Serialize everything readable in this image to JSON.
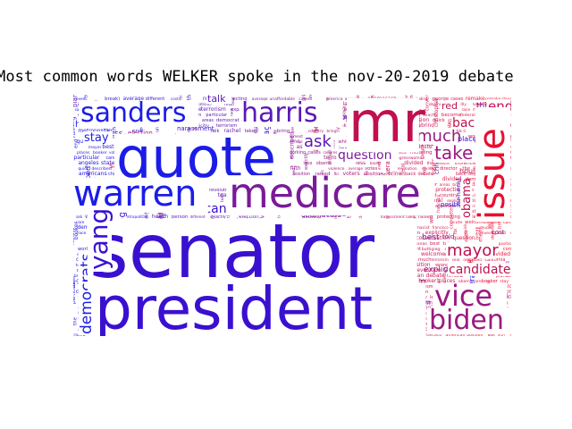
{
  "title": "Most common words WELKER spoke in the nov-20-2019 debate",
  "word_cloud": {
    "colors": {
      "blue": "#1c1ce8",
      "indigo": "#3a10d0",
      "violet": "#5a18b8",
      "purple": "#7a1a9a",
      "magenta": "#9a1a80",
      "crimson": "#c01050",
      "red": "#e81030"
    },
    "large_words": [
      {
        "text": "senator",
        "color": "indigo"
      },
      {
        "text": "president",
        "color": "indigo"
      },
      {
        "text": "quote",
        "color": "blue"
      },
      {
        "text": "mr",
        "color": "crimson"
      },
      {
        "text": "medicare",
        "color": "purple"
      },
      {
        "text": "warren",
        "color": "blue"
      },
      {
        "text": "sanders",
        "color": "blue"
      },
      {
        "text": "harris",
        "color": "violet"
      },
      {
        "text": "issue",
        "color": "red"
      },
      {
        "text": "vice",
        "color": "magenta"
      },
      {
        "text": "biden",
        "color": "magenta"
      },
      {
        "text": "yang",
        "color": "indigo"
      }
    ],
    "medium_words": [
      {
        "text": "much",
        "color": "magenta"
      },
      {
        "text": "take",
        "color": "magenta"
      },
      {
        "text": "mayor",
        "color": "crimson"
      },
      {
        "text": "steyer",
        "color": "indigo"
      },
      {
        "text": "quick",
        "color": "violet"
      },
      {
        "text": "problem",
        "color": "magenta"
      },
      {
        "text": "voters",
        "color": "violet"
      },
      {
        "text": "ask",
        "color": "violet"
      },
      {
        "text": "end",
        "color": "crimson"
      },
      {
        "text": "back",
        "color": "crimson"
      },
      {
        "text": "democrats",
        "color": "blue"
      },
      {
        "text": "candidates",
        "color": "crimson"
      },
      {
        "text": "american",
        "color": "indigo"
      },
      {
        "text": "question",
        "color": "purple"
      },
      {
        "text": "democratic",
        "color": "indigo"
      },
      {
        "text": "ashley",
        "color": "purple"
      },
      {
        "text": "stay",
        "color": "blue"
      },
      {
        "text": "break)",
        "color": "blue"
      },
      {
        "text": "break",
        "color": "indigo"
      },
      {
        "text": "obama",
        "color": "crimson"
      },
      {
        "text": "white",
        "color": "indigo"
      },
      {
        "text": "buttigieg",
        "color": "indigo"
      },
      {
        "text": "running",
        "color": "violet"
      },
      {
        "text": "america",
        "color": "purple"
      },
      {
        "text": "the",
        "color": "purple"
      },
      {
        "text": "supremacist",
        "color": "indigo"
      },
      {
        "text": "conversation",
        "color": "indigo"
      },
      {
        "text": "congresswoman",
        "color": "magenta"
      },
      {
        "text": "talk",
        "color": "violet"
      },
      {
        "text": "red",
        "color": "crimson"
      },
      {
        "text": "health",
        "color": "blue"
      }
    ],
    "small_words": [
      {
        "text": "plans",
        "color": "violet"
      },
      {
        "text": "bring",
        "color": "violet"
      },
      {
        "text": "states",
        "color": "violet"
      },
      {
        "text": "gabbard",
        "color": "purple"
      },
      {
        "text": "care",
        "color": "violet"
      },
      {
        "text": "message",
        "color": "indigo"
      },
      {
        "text": "divided",
        "color": "indigo"
      },
      {
        "text": "campaign",
        "color": "violet"
      },
      {
        "text": "different",
        "color": "violet"
      },
      {
        "text": "including",
        "color": "violet"
      },
      {
        "text": "general",
        "color": "violet"
      },
      {
        "text": "particular",
        "color": "violet"
      },
      {
        "text": "revolution",
        "color": "violet"
      },
      {
        "text": "worried",
        "color": "magenta"
      },
      {
        "text": "become",
        "color": "magenta"
      },
      {
        "text": "votes",
        "color": "magenta"
      },
      {
        "text": "domestic",
        "color": "crimson"
      },
      {
        "text": "interested",
        "color": "crimson"
      },
      {
        "text": "fifth",
        "color": "purple"
      },
      {
        "text": "country",
        "color": "purple"
      },
      {
        "text": "raised",
        "color": "magenta"
      },
      {
        "text": "election",
        "color": "magenta"
      },
      {
        "text": "millions",
        "color": "magenta"
      },
      {
        "text": "response",
        "color": "crimson"
      },
      {
        "text": "working",
        "color": "magenta"
      },
      {
        "text": "rachel",
        "color": "magenta"
      },
      {
        "text": "debate",
        "color": "magenta"
      },
      {
        "text": "told",
        "color": "magenta"
      },
      {
        "text": "los",
        "color": "crimson"
      },
      {
        "text": "violence",
        "color": "crimson"
      },
      {
        "text": "average",
        "color": "crimson"
      },
      {
        "text": "acute",
        "color": "crimson"
      },
      {
        "text": "way",
        "color": "crimson"
      },
      {
        "text": "home",
        "color": "crimson"
      },
      {
        "text": "housing",
        "color": "crimson"
      },
      {
        "text": "cases",
        "color": "crimson"
      },
      {
        "text": "critical",
        "color": "crimson"
      },
      {
        "text": "areas",
        "color": "red"
      },
      {
        "text": "san",
        "color": "red"
      },
      {
        "text": "winning",
        "color": "magenta"
      },
      {
        "text": "booker",
        "color": "magenta"
      },
      {
        "text": "think",
        "color": "purple"
      },
      {
        "text": "race",
        "color": "purple"
      },
      {
        "text": "obamacare",
        "color": "purple"
      },
      {
        "text": "explicitly",
        "color": "magenta"
      },
      {
        "text": "protecting",
        "color": "violet"
      },
      {
        "text": "francisco",
        "color": "violet"
      },
      {
        "text": "remake",
        "color": "violet"
      },
      {
        "text": "unaffordable",
        "color": "purple"
      },
      {
        "text": "terrorism",
        "color": "crimson"
      },
      {
        "text": "americans",
        "color": "crimson"
      },
      {
        "text": "position",
        "color": "blue"
      },
      {
        "text": "fbi",
        "color": "blue"
      },
      {
        "text": "welcome",
        "color": "blue"
      },
      {
        "text": "wrong",
        "color": "blue"
      },
      {
        "text": "described",
        "color": "indigo"
      },
      {
        "text": "director",
        "color": "indigo"
      },
      {
        "text": "angeles",
        "color": "indigo"
      },
      {
        "text": "places",
        "color": "indigo"
      },
      {
        "text": "completely",
        "color": "indigo"
      },
      {
        "text": "even",
        "color": "indigo"
      },
      {
        "text": "system",
        "color": "indigo"
      },
      {
        "text": "less",
        "color": "indigo"
      },
      {
        "text": "tear",
        "color": "indigo"
      },
      {
        "text": "state",
        "color": "blue"
      },
      {
        "text": "federal",
        "color": "blue"
      },
      {
        "text": "harassment",
        "color": "indigo"
      },
      {
        "text": "investigated",
        "color": "indigo"
      },
      {
        "text": "best",
        "color": "purple"
      },
      {
        "text": "moment",
        "color": "crimson"
      },
      {
        "text": "person",
        "color": "crimson"
      },
      {
        "text": "california",
        "color": "magenta"
      },
      {
        "text": "cost",
        "color": "magenta"
      },
      {
        "text": "george",
        "color": "violet"
      },
      {
        "text": "metropolitan",
        "color": "violet"
      },
      {
        "text": "christopher",
        "color": "purple"
      },
      {
        "text": "exactly",
        "color": "magenta"
      }
    ]
  }
}
